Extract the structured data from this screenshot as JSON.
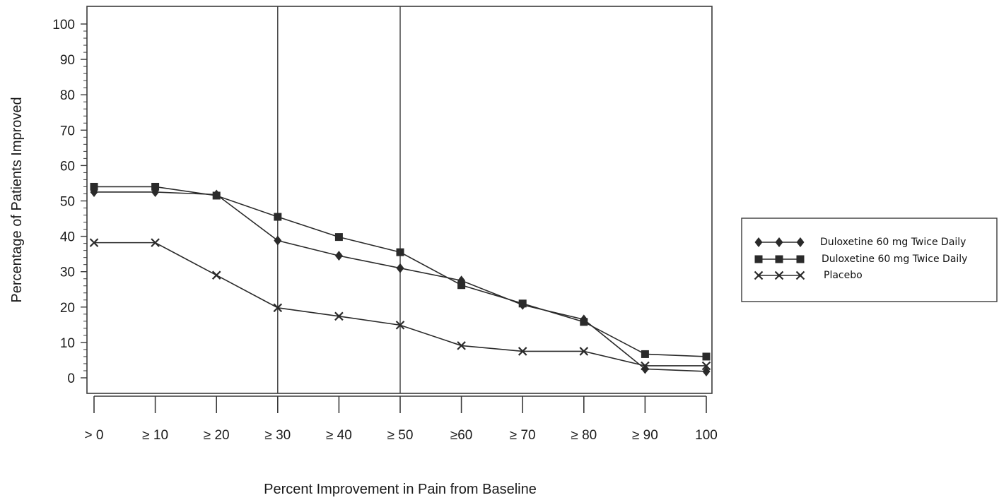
{
  "chart_data": {
    "type": "line",
    "title": "",
    "xlabel": "Percent Improvement in Pain from Baseline",
    "ylabel": "Percentage of Patients Improved",
    "categories": [
      "> 0",
      "≥ 10",
      "≥ 20",
      "≥ 30",
      "≥ 40",
      "≥ 50",
      "≥60",
      "≥ 70",
      "≥ 80",
      "≥ 90",
      "100"
    ],
    "ylim": [
      0,
      100
    ],
    "yticks": [
      "0",
      "10",
      "20",
      "30",
      "40",
      "50",
      "60",
      "70",
      "80",
      "90",
      "100"
    ],
    "reference_lines_at": [
      "≥ 30",
      "≥ 50"
    ],
    "grid": false,
    "legend_position": "right",
    "series": [
      {
        "name": "Duloxetine 60 mg Twice Daily",
        "marker": "diamond",
        "values": [
          52.5,
          52.5,
          51.8,
          38.8,
          34.5,
          31,
          27.5,
          20.6,
          16.5,
          2.5,
          1.8
        ]
      },
      {
        "name": "Duloxetine 60 mg Twice Daily",
        "marker": "square",
        "values": [
          54,
          54,
          51.5,
          45.5,
          39.8,
          35.5,
          26.2,
          21,
          15.8,
          6.7,
          6
        ]
      },
      {
        "name": "Placebo",
        "marker": "x",
        "values": [
          38.2,
          38.2,
          29,
          19.8,
          17.4,
          14.9,
          9.1,
          7.5,
          7.5,
          3.4,
          3.4
        ]
      }
    ],
    "colors": {
      "line": "#2a2a2a",
      "axis": "#3a3a3a"
    }
  }
}
